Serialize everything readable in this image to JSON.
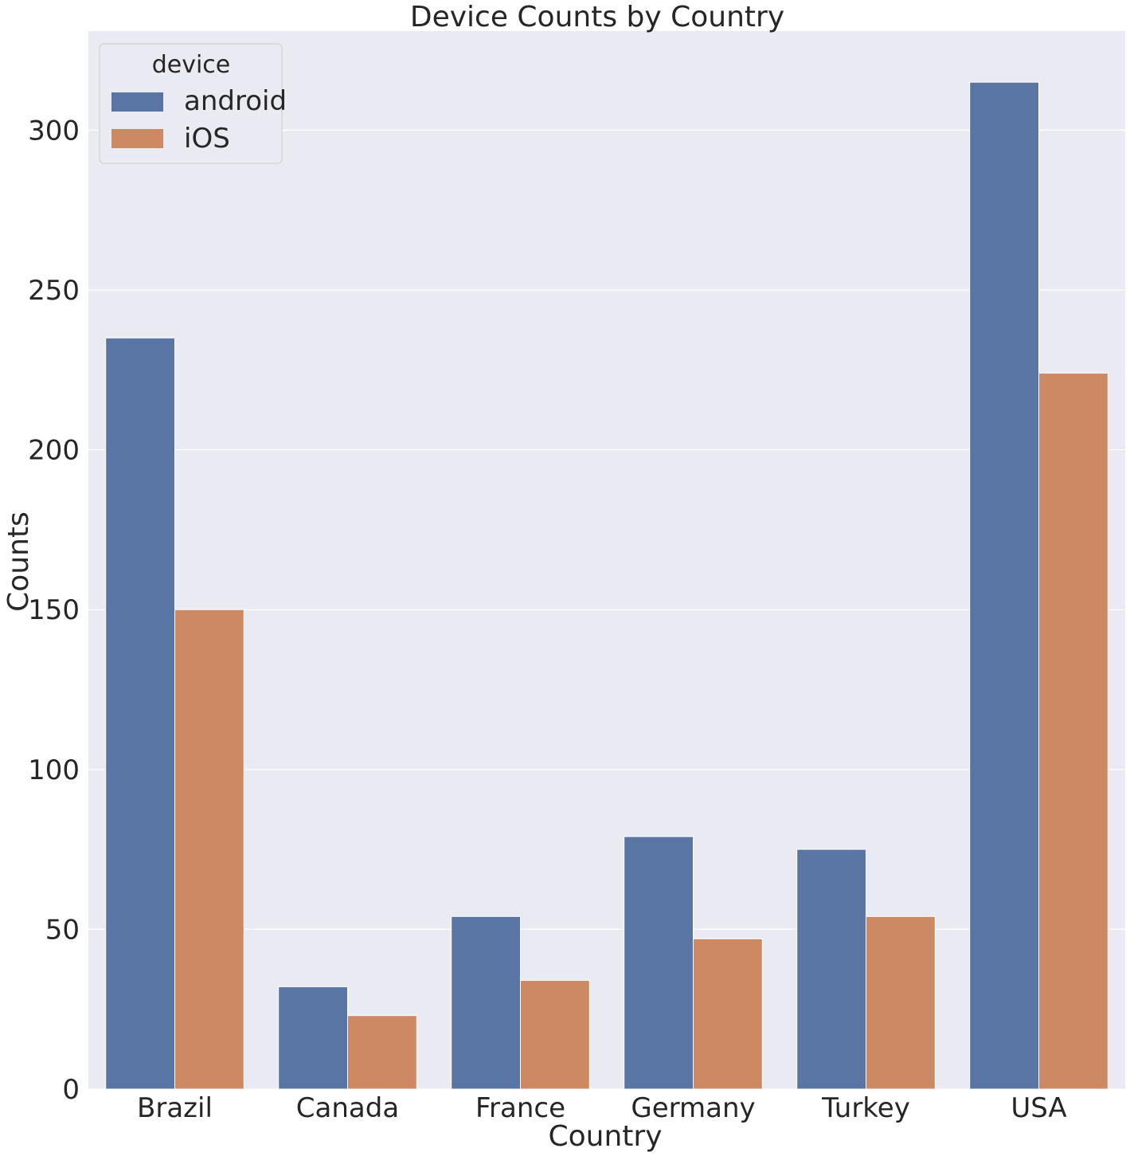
{
  "chart_data": {
    "type": "bar",
    "title": "Device Counts by Country",
    "xlabel": "Country",
    "ylabel": "Counts",
    "categories": [
      "Brazil",
      "Canada",
      "France",
      "Germany",
      "Turkey",
      "USA"
    ],
    "series": [
      {
        "name": "android",
        "color": "#5975a4",
        "values": [
          235,
          32,
          54,
          79,
          75,
          315
        ]
      },
      {
        "name": "iOS",
        "color": "#cc8963",
        "values": [
          150,
          23,
          34,
          47,
          54,
          224
        ]
      }
    ],
    "ylim": [
      0,
      331
    ],
    "yticks": [
      0,
      50,
      100,
      150,
      200,
      250,
      300
    ],
    "grid": true,
    "legend": {
      "title": "device",
      "placement": "top-left"
    },
    "colors": {
      "plot_background": "#eaeaf2",
      "gridline": "#ffffff"
    }
  }
}
